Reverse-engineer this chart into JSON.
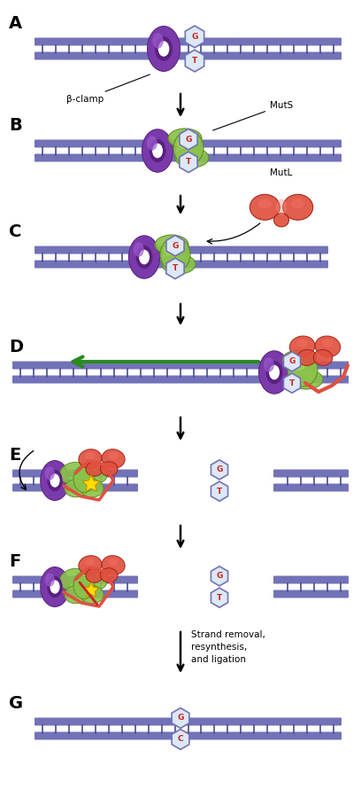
{
  "bg_color": "#ffffff",
  "dna_color": "#7272b8",
  "dna_stripe_color": "#4a4a90",
  "beta_clamp_color": "#7a3aaa",
  "beta_clamp_light": "#9a5acc",
  "beta_clamp_dark": "#5a2080",
  "muts_color": "#8bc34a",
  "muts_dark": "#5a8a20",
  "mutl_color": "#e05040",
  "mutl_light": "#f07060",
  "mutl_dark": "#a02010",
  "gt_color": "#cc2222",
  "gt_bg": "#dde8f5",
  "arrow_color": "#000000",
  "green_arrow_color": "#2a8a20",
  "yellow_color": "#ffdd00",
  "annotations": {
    "beta_clamp": "β-clamp",
    "muts": "MutS",
    "mutl": "MutL",
    "strand_removal": "Strand removal,\nresynthesis,\nand ligation"
  }
}
